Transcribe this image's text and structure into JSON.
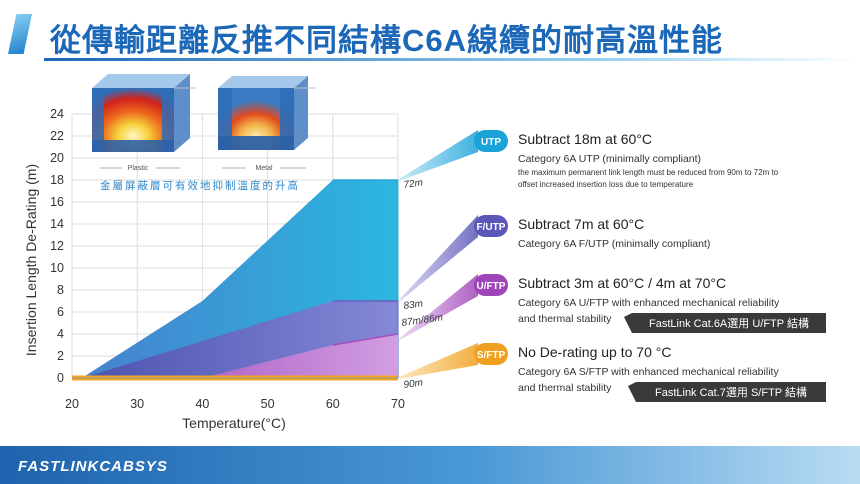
{
  "title": "從傳輸距離反推不同結構C6A線纜的耐高溫性能",
  "footer": {
    "brand": "FASTLINKCABSYS"
  },
  "inset": {
    "caption": "金屬屏蔽層可有效地抑制溫度的升高",
    "left_label": "Plastic",
    "right_label": "Metal"
  },
  "chart_data": {
    "type": "area",
    "xlabel": "Temperature(°C)",
    "ylabel": "Insertion Length De-Rating (m)",
    "xlim": [
      20,
      70
    ],
    "ylim": [
      0,
      24
    ],
    "xticks": [
      20,
      30,
      40,
      50,
      60,
      70
    ],
    "yticks": [
      0,
      2,
      4,
      6,
      8,
      10,
      12,
      14,
      16,
      18,
      20,
      22,
      24
    ],
    "grid": true,
    "series": [
      {
        "name": "UTP",
        "color": "#2aa7d6",
        "x": [
          20,
          21.5,
          40,
          60,
          70
        ],
        "y": [
          0,
          0,
          7,
          18,
          18
        ],
        "end_label": "72m"
      },
      {
        "name": "F/UTP",
        "color": "#6a5fc0",
        "x": [
          20,
          21.5,
          60,
          70
        ],
        "y": [
          0,
          0,
          7,
          7
        ],
        "end_label": "83m"
      },
      {
        "name": "U/FTP",
        "color": "#a74dbf",
        "x": [
          20,
          40,
          60,
          70
        ],
        "y": [
          0,
          0,
          3,
          4
        ],
        "end_label": "87m/86m"
      },
      {
        "name": "S/FTP",
        "color": "#f3a31c",
        "x": [
          20,
          70
        ],
        "y": [
          0,
          0
        ],
        "end_label": "90m"
      }
    ]
  },
  "callouts": [
    {
      "badge": "UTP",
      "color": "#1ba2d8",
      "title": "Subtract 18m at 60°C",
      "lines": [
        "Category 6A UTP (minimally compliant)"
      ],
      "notes": [
        "the maximum permanent link length must be reduced from  90m to 72m to",
        "offset increased insertion loss due to temperature"
      ],
      "tag": ""
    },
    {
      "badge": "F/UTP",
      "color": "#5b57b8",
      "title": "Subtract 7m at 60°C",
      "lines": [
        "Category 6A F/UTP (minimally compliant)"
      ],
      "notes": [],
      "tag": ""
    },
    {
      "badge": "U/FTP",
      "color": "#9e45b8",
      "title": "Subtract 3m at 60°C / 4m at 70°C",
      "lines": [
        "Category 6A U/FTP with enhanced mechanical reliability",
        "and thermal stability"
      ],
      "notes": [],
      "tag": "FastLink Cat.6A選用 U/FTP 結構"
    },
    {
      "badge": "S/FTP",
      "color": "#f0a020",
      "title": "No De-rating up to 70 °C",
      "lines": [
        "Category 6A S/FTP with enhanced mechanical reliability",
        "and thermal stability"
      ],
      "notes": [],
      "tag": "FastLink Cat.7選用 S/FTP 結構"
    }
  ]
}
